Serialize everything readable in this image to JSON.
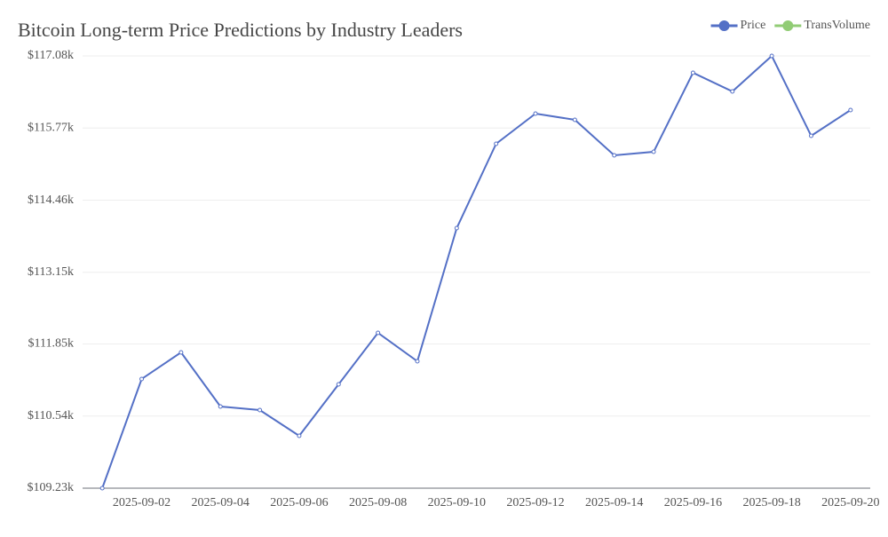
{
  "chart_data": {
    "type": "line",
    "title": "Bitcoin Long-term Price Predictions by Industry Leaders",
    "x": [
      "2025-09-01",
      "2025-09-02",
      "2025-09-03",
      "2025-09-04",
      "2025-09-05",
      "2025-09-06",
      "2025-09-07",
      "2025-09-08",
      "2025-09-09",
      "2025-09-10",
      "2025-09-11",
      "2025-09-12",
      "2025-09-13",
      "2025-09-14",
      "2025-09-15",
      "2025-09-16",
      "2025-09-17",
      "2025-09-18",
      "2025-09-19",
      "2025-09-20"
    ],
    "xticks": [
      "2025-09-02",
      "2025-09-04",
      "2025-09-06",
      "2025-09-08",
      "2025-09-10",
      "2025-09-12",
      "2025-09-14",
      "2025-09-16",
      "2025-09-18",
      "2025-09-20"
    ],
    "series": [
      {
        "name": "Price",
        "color": "#5470c6",
        "values": [
          109230,
          111213,
          111696,
          110713,
          110648,
          110181,
          111116,
          112051,
          111535,
          113953,
          115484,
          116032,
          115920,
          115275,
          115339,
          116774,
          116435,
          117080,
          115629,
          116097
        ]
      },
      {
        "name": "TransVolume",
        "color": "#91cc75",
        "values": [
          null,
          null,
          null,
          null,
          null,
          null,
          null,
          null,
          null,
          null,
          null,
          null,
          null,
          null,
          null,
          null,
          null,
          null,
          null,
          null
        ]
      }
    ],
    "ylim": [
      109230,
      117080
    ],
    "yticks": [
      {
        "value": 109230,
        "label": "$109.23k"
      },
      {
        "value": 110540,
        "label": "$110.54k"
      },
      {
        "value": 111850,
        "label": "$111.85k"
      },
      {
        "value": 113150,
        "label": "$113.15k"
      },
      {
        "value": 114460,
        "label": "$114.46k"
      },
      {
        "value": 115770,
        "label": "$115.77k"
      },
      {
        "value": 117080,
        "label": "$117.08k"
      }
    ],
    "grid": true,
    "legend_position": "top-right"
  }
}
